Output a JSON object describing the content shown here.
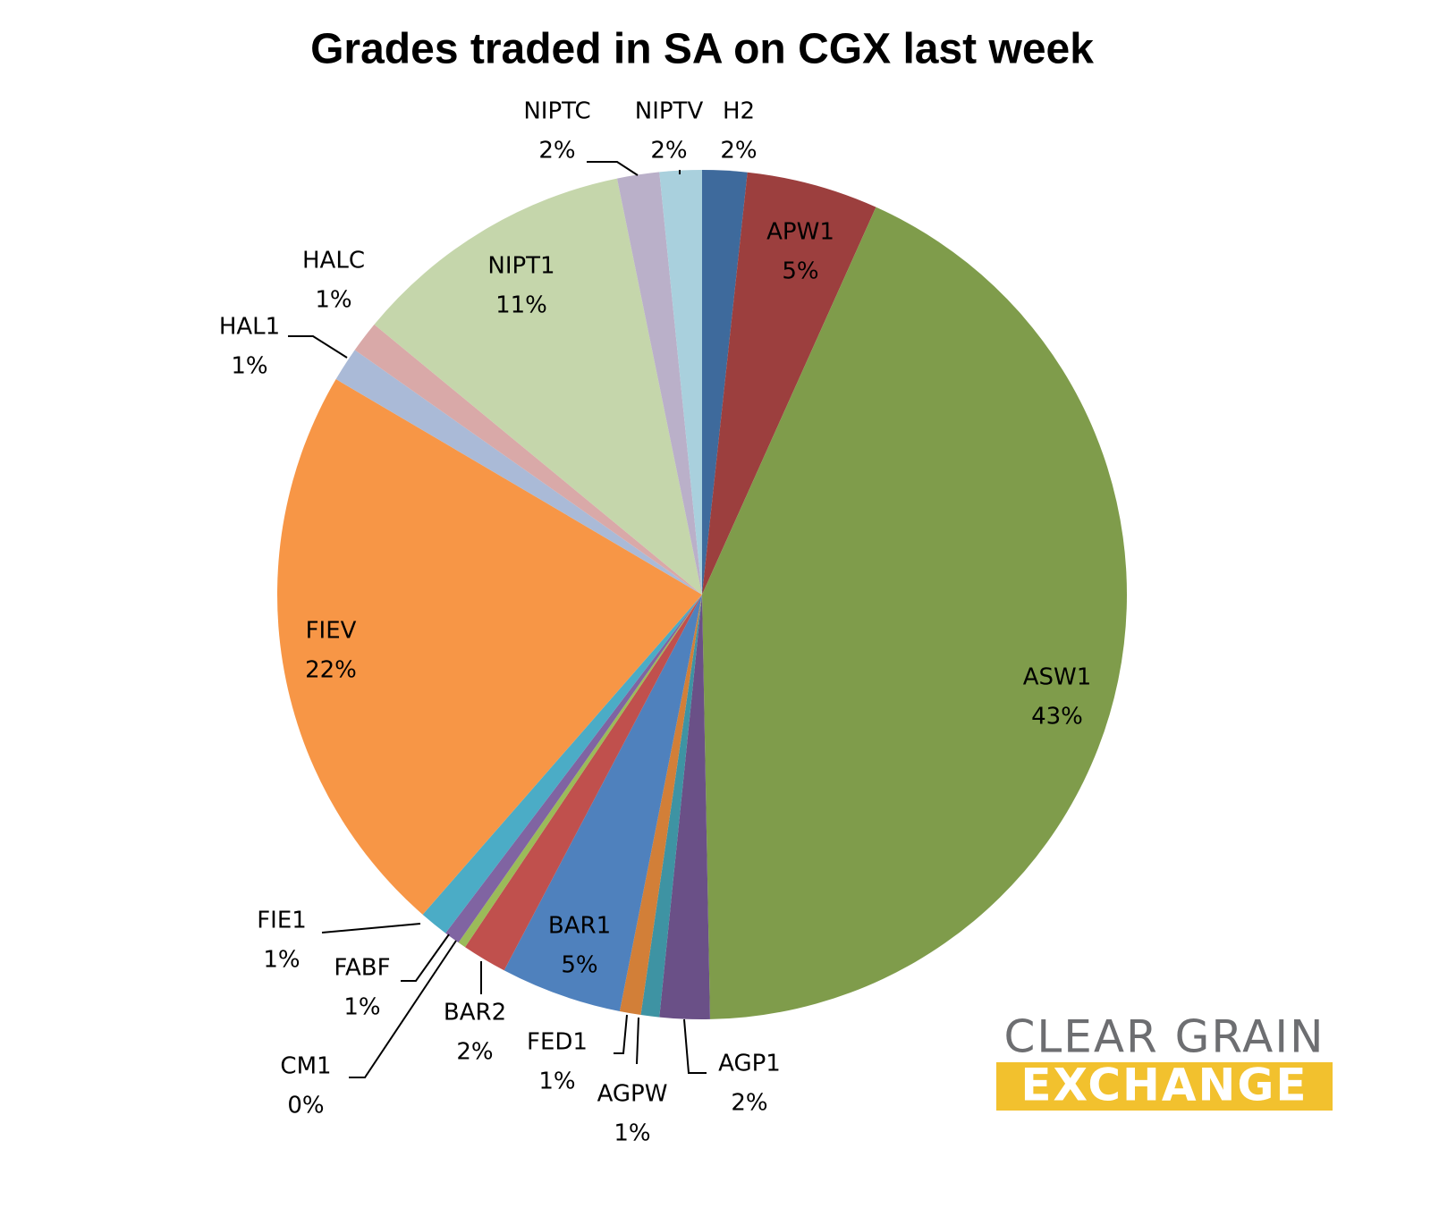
{
  "chart_data": {
    "type": "pie",
    "title": "Grades traded in SA on CGX last week",
    "categories": [
      "H2",
      "APW1",
      "ASW1",
      "AGP1",
      "AGPW",
      "FED1",
      "BAR1",
      "BAR2",
      "CM1",
      "FABF",
      "FIE1",
      "FIEV",
      "HAL1",
      "HALC",
      "NIPT1",
      "NIPTC",
      "NIPTV"
    ],
    "values": [
      1.7,
      5.0,
      42.9,
      1.9,
      0.7,
      0.8,
      4.6,
      1.7,
      0.3,
      0.6,
      1.1,
      22.0,
      1.3,
      1.2,
      10.8,
      1.6,
      1.6
    ],
    "value_labels": [
      "2%",
      "5%",
      "43%",
      "2%",
      "1%",
      "1%",
      "5%",
      "2%",
      "0%",
      "1%",
      "1%",
      "22%",
      "1%",
      "1%",
      "11%",
      "2%",
      "2%"
    ],
    "colors": [
      "#3e6a9c",
      "#9c3f3e",
      "#7f9c4b",
      "#6a5087",
      "#3e93a3",
      "#d27f38",
      "#4f81bd",
      "#c0504d",
      "#9bbb59",
      "#8064a2",
      "#4bacc6",
      "#f79646",
      "#aabad7",
      "#d9a9a8",
      "#c5d6ab",
      "#bab0c9",
      "#a9d0dd"
    ]
  },
  "logo": {
    "line1": "CLEAR GRAIN",
    "line2": "EXCHANGE"
  }
}
